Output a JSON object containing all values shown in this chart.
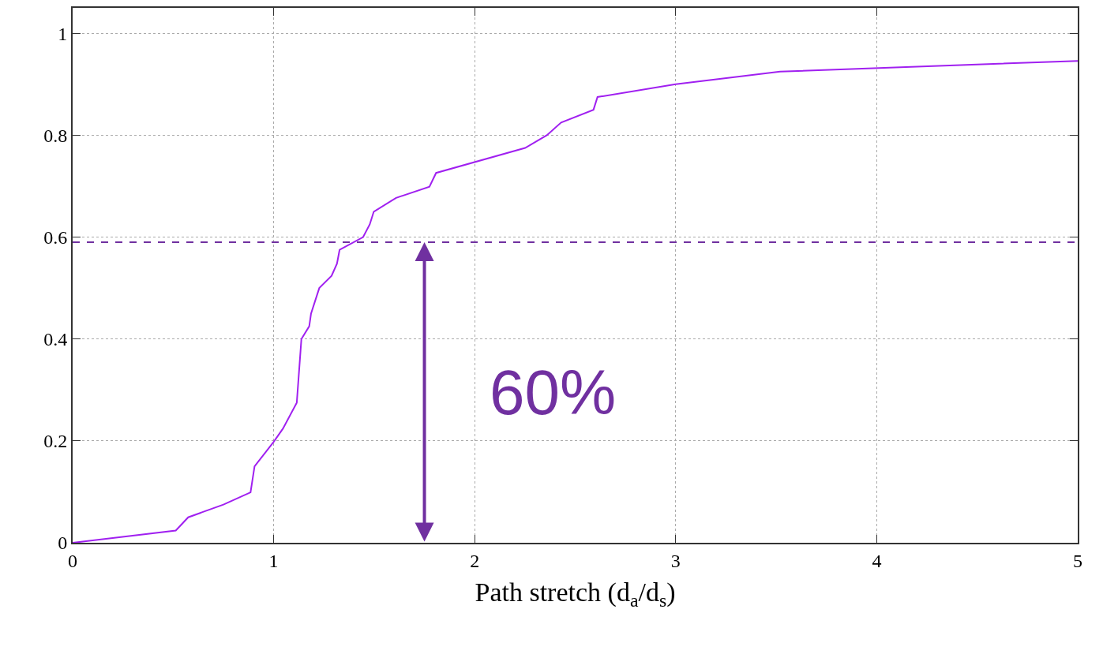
{
  "chart_data": {
    "type": "line",
    "xlabel": "Path stretch (d$_{a}$/d$_{s}$)",
    "series": [
      {
        "color": "#a020f0",
        "x": [
          0,
          0.513,
          0.575,
          0.75,
          0.885,
          0.905,
          1.0,
          1.046,
          1.115,
          1.138,
          1.177,
          1.186,
          1.227,
          1.288,
          1.315,
          1.328,
          1.445,
          1.478,
          1.498,
          1.609,
          1.775,
          1.808,
          2.251,
          2.359,
          2.43,
          2.591,
          2.611,
          3.0,
          3.519,
          5.0
        ],
        "values": [
          0,
          0.024,
          0.05,
          0.075,
          0.099,
          0.15,
          0.198,
          0.224,
          0.275,
          0.4,
          0.425,
          0.45,
          0.5,
          0.524,
          0.548,
          0.575,
          0.6,
          0.625,
          0.65,
          0.677,
          0.699,
          0.726,
          0.775,
          0.8,
          0.825,
          0.85,
          0.875,
          0.9,
          0.925,
          0.946
        ]
      }
    ],
    "xlim": [
      0,
      5
    ],
    "ylim": [
      0,
      1.05
    ],
    "xticks": [
      0,
      1,
      2,
      3,
      4,
      5
    ],
    "yticks": [
      0,
      0.2,
      0.4,
      0.6,
      0.8,
      1
    ],
    "grid": true,
    "line_style": "solid",
    "marker": "none",
    "ref_lines": [
      {
        "axis": "y",
        "value": 0.59,
        "color": "#7030a0",
        "line_style": "dashed"
      }
    ],
    "annotations": [
      {
        "text": "60%",
        "x": 1.75,
        "y": 0.59
      }
    ]
  }
}
